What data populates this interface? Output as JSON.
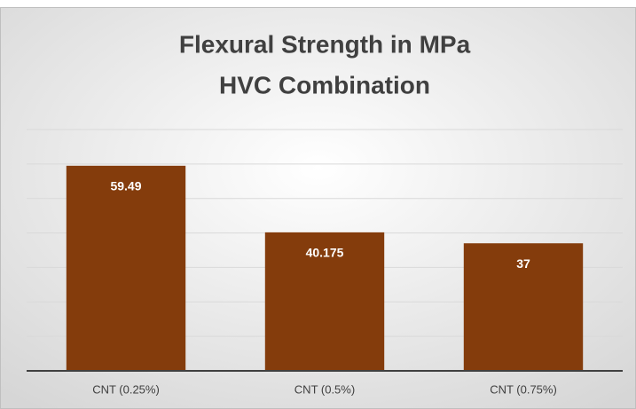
{
  "chart_data": {
    "type": "bar",
    "title": [
      "Flexural Strength in MPa",
      "HVC Combination"
    ],
    "categories": [
      "CNT (0.25%)",
      "CNT (0.5%)",
      "CNT (0.75%)"
    ],
    "values": [
      59.49,
      40.175,
      37
    ],
    "color": "#843c0c",
    "ylim": [
      0,
      70
    ],
    "yticks": [
      0,
      10,
      20,
      30,
      40,
      50,
      60,
      70
    ],
    "grid": true
  }
}
